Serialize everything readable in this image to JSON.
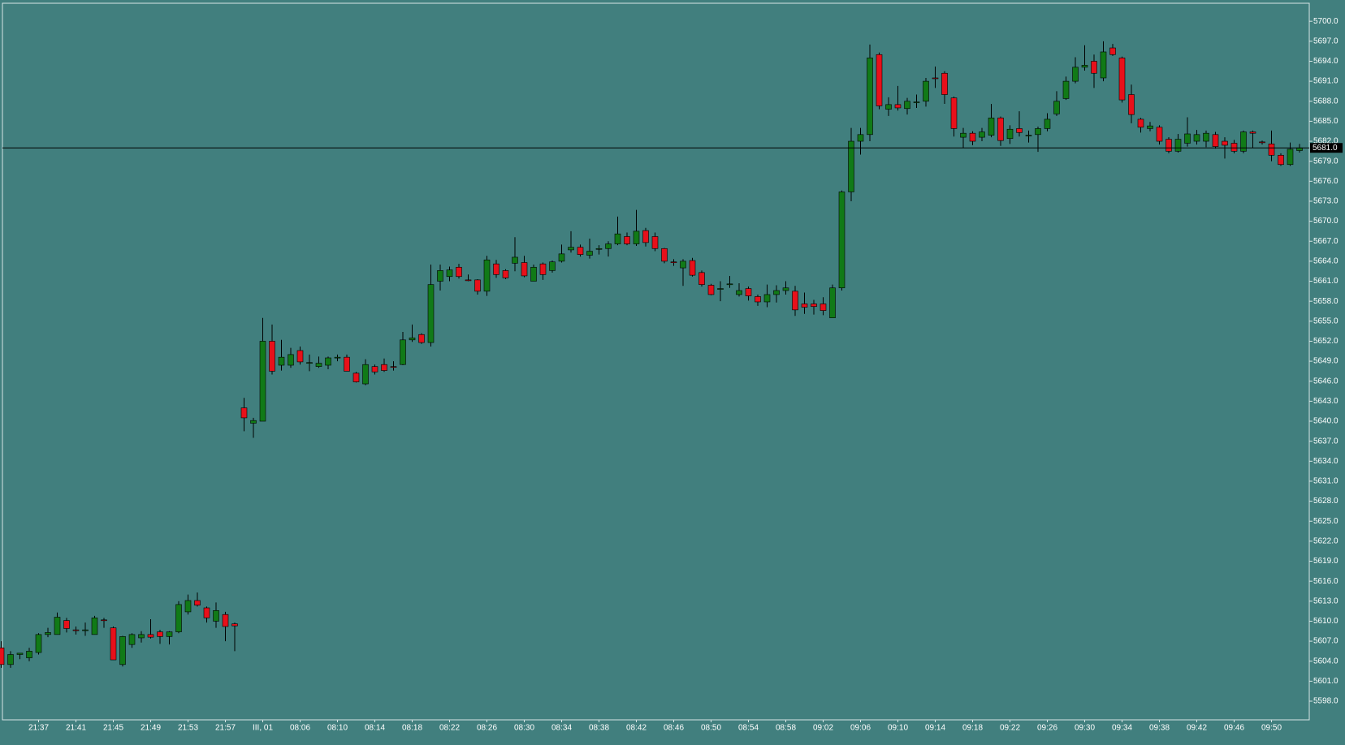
{
  "chart_data": {
    "type": "candlestick",
    "categories": [
      null,
      null,
      null,
      null,
      "21:37",
      null,
      null,
      null,
      "21:41",
      null,
      null,
      null,
      "21:45",
      null,
      null,
      null,
      "21:49",
      null,
      null,
      null,
      "21:53",
      null,
      null,
      null,
      "21:57",
      null,
      null,
      null,
      "III, 01",
      null,
      null,
      null,
      "08:06",
      null,
      null,
      null,
      "08:10",
      null,
      null,
      null,
      "08:14",
      null,
      null,
      null,
      "08:18",
      null,
      null,
      null,
      "08:22",
      null,
      null,
      null,
      "08:26",
      null,
      null,
      null,
      "08:30",
      null,
      null,
      null,
      "08:34",
      null,
      null,
      null,
      "08:38",
      null,
      null,
      null,
      "08:42",
      null,
      null,
      null,
      "08:46",
      null,
      null,
      null,
      "08:50",
      null,
      null,
      null,
      "08:54",
      null,
      null,
      null,
      "08:58",
      null,
      null,
      null,
      "09:02",
      null,
      null,
      null,
      "09:06",
      null,
      null,
      null,
      "09:10",
      null,
      null,
      null,
      "09:14",
      null,
      null,
      null,
      "09:18",
      null,
      null,
      null,
      "09:22",
      null,
      null,
      null,
      "09:26",
      null,
      null,
      null,
      "09:30",
      null,
      null,
      null,
      "09:34",
      null,
      null,
      null,
      "09:38",
      null,
      null,
      null,
      "09:42",
      null,
      null,
      null,
      "09:46",
      null,
      null,
      null,
      "09:50",
      null,
      null,
      null
    ],
    "open": [
      5606,
      5603.5,
      5605,
      5604.5,
      5605.3,
      5608,
      5608,
      5610.1,
      5608.7,
      5608.6,
      5608,
      5610.2,
      5609,
      5603.5,
      5606.5,
      5607.5,
      5608,
      5608.4,
      5607.7,
      5608.4,
      5611.4,
      5613.1,
      5612,
      5610,
      5611,
      5609.6,
      5642,
      5639.7,
      5640,
      5652,
      5648.4,
      5648.4,
      5650.6,
      5648.8,
      5648.2,
      5648.4,
      5649.6,
      5649.6,
      5647.2,
      5645.6,
      5648.2,
      5648.5,
      5648.2,
      5648.5,
      5652.2,
      5653,
      5651.8,
      5661,
      5661.7,
      5663.1,
      5661.2,
      5661.2,
      5659.5,
      5663.6,
      5662.6,
      5663.7,
      5663.8,
      5661,
      5663.6,
      5662.6,
      5664,
      5665.7,
      5666.1,
      5664.9,
      5665.9,
      5665.9,
      5666.6,
      5667.7,
      5666.6,
      5668.6,
      5667.7,
      5665.9,
      5663.9,
      5663,
      5664.1,
      5662.3,
      5660.4,
      5659.9,
      5660.6,
      5659,
      5659.9,
      5658.7,
      5657.9,
      5659,
      5659.6,
      5659.5,
      5657.6,
      5657.6,
      5657.6,
      5655.5,
      5660,
      5674.4,
      5682,
      5683,
      5695,
      5686.8,
      5687.5,
      5686.9,
      5687.9,
      5688,
      5691.5,
      5692.2,
      5688.5,
      5682.6,
      5683.2,
      5682.6,
      5682.9,
      5685.5,
      5682.4,
      5683.9,
      5682.9,
      5683,
      5683.9,
      5686.1,
      5688.4,
      5691,
      5693.1,
      5694,
      5691.5,
      5696,
      5694.5,
      5689,
      5685.3,
      5683.9,
      5684.1,
      5682.3,
      5680.5,
      5681.7,
      5682,
      5682,
      5683,
      5682,
      5681.7,
      5680.5,
      5683.4,
      5681.9,
      5681.6,
      5679.9,
      5678.5,
      5680.6
    ],
    "high": [
      5607,
      5605.5,
      5605.2,
      5606,
      5608.2,
      5609,
      5611.3,
      5610.5,
      5609.2,
      5609.8,
      5610.8,
      5610.5,
      5609.2,
      5607.8,
      5608.2,
      5608.5,
      5610.3,
      5608.7,
      5608.5,
      5613,
      5614,
      5614.3,
      5612.2,
      5612.8,
      5611.4,
      5609.8,
      5643.5,
      5640.5,
      5655.5,
      5654.5,
      5652.2,
      5651,
      5651.2,
      5650,
      5649.7,
      5649.7,
      5650,
      5650,
      5647.4,
      5649.3,
      5648.5,
      5649.4,
      5649,
      5653.4,
      5654.5,
      5653.2,
      5663.5,
      5663.5,
      5663.2,
      5663.6,
      5662,
      5661.3,
      5664.8,
      5664.2,
      5662.8,
      5667.6,
      5664.8,
      5663.5,
      5663.8,
      5664.1,
      5666.5,
      5668.5,
      5666.5,
      5667.4,
      5666.4,
      5667,
      5670.7,
      5668.3,
      5671.7,
      5669,
      5668.3,
      5666,
      5664.3,
      5664.3,
      5664.5,
      5662.6,
      5660.6,
      5661,
      5661.8,
      5660.7,
      5660.2,
      5659,
      5660.5,
      5660.4,
      5661,
      5660.3,
      5659.3,
      5658.2,
      5658.6,
      5660.5,
      5674.6,
      5684,
      5684,
      5696.5,
      5695.3,
      5688.6,
      5690.3,
      5688.5,
      5689,
      5691.5,
      5693.2,
      5692.5,
      5688.7,
      5684,
      5683.5,
      5684,
      5687.6,
      5685.7,
      5684.4,
      5686.5,
      5683.6,
      5684.2,
      5686.2,
      5689.5,
      5691.7,
      5694.6,
      5696.4,
      5695,
      5697,
      5696.6,
      5694.7,
      5690.5,
      5685.5,
      5684.9,
      5684.4,
      5682.6,
      5683.1,
      5685.6,
      5683.7,
      5683.6,
      5683.4,
      5682.6,
      5682.2,
      5683.6,
      5683.6,
      5682.1,
      5683.6,
      5680.2,
      5681.8,
      5681.6
    ],
    "low": [
      5603,
      5603,
      5604.3,
      5604,
      5605,
      5607.6,
      5608,
      5608.3,
      5608,
      5607.8,
      5608,
      5609,
      5604.2,
      5603.2,
      5606,
      5606.8,
      5607.4,
      5606.6,
      5606.5,
      5608.2,
      5611,
      5612.2,
      5609.8,
      5609,
      5607,
      5605.5,
      5638.5,
      5637.5,
      5640,
      5647,
      5647.6,
      5648,
      5648.5,
      5647.5,
      5648,
      5647.8,
      5649,
      5647.5,
      5645.8,
      5645.4,
      5647,
      5647.4,
      5647.6,
      5648.4,
      5651.9,
      5651.6,
      5651.2,
      5659.6,
      5661,
      5661.4,
      5661,
      5659,
      5658.8,
      5661.5,
      5661.3,
      5662.5,
      5661.6,
      5661,
      5661.2,
      5662.3,
      5663.8,
      5665.3,
      5664.7,
      5664.4,
      5665,
      5664.7,
      5666.4,
      5666.4,
      5666.3,
      5666.2,
      5665.5,
      5663.7,
      5663.3,
      5660.3,
      5661.7,
      5660.2,
      5658.9,
      5658,
      5660,
      5658.7,
      5658.1,
      5657.3,
      5657.1,
      5657.8,
      5659,
      5655.8,
      5656.1,
      5656,
      5655.9,
      5655.5,
      5659.6,
      5673,
      5680,
      5682,
      5686.8,
      5685.8,
      5686.6,
      5686,
      5687,
      5687.2,
      5690,
      5687.6,
      5682.7,
      5681,
      5681.4,
      5682,
      5682.6,
      5681.3,
      5681.6,
      5682.7,
      5681.8,
      5680.4,
      5683.5,
      5685.8,
      5688.2,
      5690.7,
      5692.6,
      5690,
      5691,
      5694.8,
      5687.8,
      5684.7,
      5683.3,
      5683.5,
      5681.5,
      5680.2,
      5680.3,
      5681.2,
      5681.5,
      5681.1,
      5680.9,
      5679.4,
      5680.2,
      5680.2,
      5681,
      5681.5,
      5679,
      5678.3,
      5678.3,
      5680.3
    ],
    "close": [
      5603.5,
      5605,
      5605.2,
      5605.5,
      5608,
      5608.3,
      5610.6,
      5608.9,
      5608.6,
      5608.7,
      5610.5,
      5610.1,
      5604.2,
      5607.7,
      5608,
      5608,
      5607.6,
      5607.7,
      5608.4,
      5612.5,
      5613.1,
      5612.4,
      5610.5,
      5611.6,
      5609.2,
      5609.3,
      5640.5,
      5640.1,
      5652,
      5647.5,
      5649.6,
      5650,
      5648.9,
      5648.8,
      5648.7,
      5649.5,
      5649.6,
      5647.5,
      5645.9,
      5648.5,
      5647.4,
      5647.6,
      5648.1,
      5652.2,
      5652.5,
      5651.8,
      5660.5,
      5662.6,
      5662.7,
      5661.7,
      5661.1,
      5659.5,
      5664.2,
      5662,
      5661.5,
      5664.6,
      5661.8,
      5663.1,
      5662,
      5663.9,
      5665.1,
      5666.1,
      5665,
      5665.5,
      5665.9,
      5666.6,
      5668.1,
      5666.6,
      5668.5,
      5666.8,
      5665.9,
      5664,
      5663.8,
      5664,
      5661.9,
      5660.5,
      5659,
      5659.9,
      5660.6,
      5659.6,
      5658.8,
      5657.9,
      5659,
      5659.6,
      5660,
      5656.7,
      5657.1,
      5657.2,
      5656.6,
      5660,
      5674.4,
      5682,
      5683,
      5694.5,
      5687.3,
      5687.5,
      5687,
      5688,
      5687.9,
      5691,
      5691.4,
      5689,
      5683.9,
      5683.2,
      5682,
      5683.4,
      5685.5,
      5682.1,
      5683.8,
      5683.3,
      5682.9,
      5683.9,
      5685.3,
      5688,
      5691,
      5693.1,
      5693.4,
      5692.2,
      5695.4,
      5695,
      5688.2,
      5686,
      5684.1,
      5684.3,
      5682,
      5680.5,
      5682.3,
      5683.1,
      5683,
      5683.2,
      5681.2,
      5681.4,
      5680.5,
      5683.4,
      5683.2,
      5681.8,
      5679.9,
      5678.5,
      5680.8,
      5681
    ],
    "up_color": "#117a17",
    "down_color": "#e8101a",
    "background": "#417f7e",
    "ylim": [
      5595.2,
      5702.7
    ],
    "yticks": [
      {
        "value": 5598,
        "label": "5598.0"
      },
      {
        "value": 5601,
        "label": "5601.0"
      },
      {
        "value": 5604,
        "label": "5604.0"
      },
      {
        "value": 5607,
        "label": "5607.0"
      },
      {
        "value": 5610,
        "label": "5610.0"
      },
      {
        "value": 5613,
        "label": "5613.0"
      },
      {
        "value": 5616,
        "label": "5616.0"
      },
      {
        "value": 5619,
        "label": "5619.0"
      },
      {
        "value": 5622,
        "label": "5622.0"
      },
      {
        "value": 5625,
        "label": "5625.0"
      },
      {
        "value": 5628,
        "label": "5628.0"
      },
      {
        "value": 5631,
        "label": "5631.0"
      },
      {
        "value": 5634,
        "label": "5634.0"
      },
      {
        "value": 5637,
        "label": "5637.0"
      },
      {
        "value": 5640,
        "label": "5640.0"
      },
      {
        "value": 5643,
        "label": "5643.0"
      },
      {
        "value": 5646,
        "label": "5646.0"
      },
      {
        "value": 5649,
        "label": "5649.0"
      },
      {
        "value": 5652,
        "label": "5652.0"
      },
      {
        "value": 5655,
        "label": "5655.0"
      },
      {
        "value": 5658,
        "label": "5658.0"
      },
      {
        "value": 5661,
        "label": "5661.0"
      },
      {
        "value": 5664,
        "label": "5664.0"
      },
      {
        "value": 5667,
        "label": "5667.0"
      },
      {
        "value": 5670,
        "label": "5670.0"
      },
      {
        "value": 5673,
        "label": "5673.0"
      },
      {
        "value": 5676,
        "label": "5676.0"
      },
      {
        "value": 5679,
        "label": "5679.0"
      },
      {
        "value": 5682,
        "label": "5682.0"
      },
      {
        "value": 5685,
        "label": "5685.0"
      },
      {
        "value": 5688,
        "label": "5688.0"
      },
      {
        "value": 5691,
        "label": "5691.0"
      },
      {
        "value": 5694,
        "label": "5694.0"
      },
      {
        "value": 5697,
        "label": "5697.0"
      },
      {
        "value": 5700,
        "label": "5700.0"
      }
    ],
    "price_line": {
      "value": 5681,
      "label": "5681.0"
    }
  }
}
